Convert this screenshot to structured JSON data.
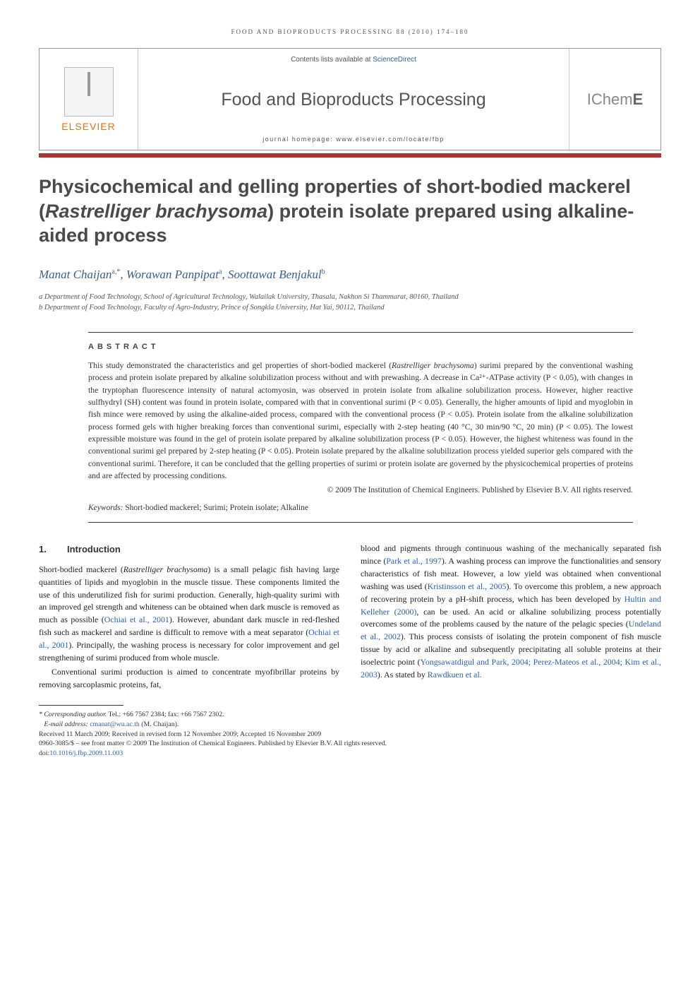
{
  "running_header": "FOOD AND BIOPRODUCTS PROCESSING 88 (2010) 174–180",
  "banner": {
    "elsevier": "ELSEVIER",
    "contents_prefix": "Contents lists available at ",
    "contents_link": "ScienceDirect",
    "journal_name": "Food and Bioproducts Processing",
    "homepage": "journal homepage: www.elsevier.com/locate/fbp",
    "publisher_mark_left": "IChem",
    "publisher_mark_bold": "E"
  },
  "title": {
    "pre": "Physicochemical and gelling properties of short-bodied mackerel (",
    "species": "Rastrelliger brachysoma",
    "post": ") protein isolate prepared using alkaline-aided process"
  },
  "authors_html": "Manat Chaijan<sup>a,*</sup>, Worawan Panpipat<sup>a</sup>, Soottawat Benjakul<sup>b</sup>",
  "affiliations": {
    "a": "a Department of Food Technology, School of Agricultural Technology, Walailak University, Thasala, Nakhon Si Thammarat, 80160, Thailand",
    "b": "b Department of Food Technology, Faculty of Agro-Industry, Prince of Songkla University, Hat Yai, 90112, Thailand"
  },
  "abstract": {
    "heading": "ABSTRACT",
    "body_pre": "This study demonstrated the characteristics and gel properties of short-bodied mackerel (",
    "body_species": "Rastrelliger brachysoma",
    "body_post": ") surimi prepared by the conventional washing process and protein isolate prepared by alkaline solubilization process without and with prewashing. A decrease in Ca²⁺-ATPase activity (P < 0.05), with changes in the tryptophan fluorescence intensity of natural actomyosin, was observed in protein isolate from alkaline solubilization process. However, higher reactive sulfhydryl (SH) content was found in protein isolate, compared with that in conventional surimi (P < 0.05). Generally, the higher amounts of lipid and myoglobin in fish mince were removed by using the alkaline-aided process, compared with the conventional process (P < 0.05). Protein isolate from the alkaline solubilization process formed gels with higher breaking forces than conventional surimi, especially with 2-step heating (40 °C, 30 min/90 °C, 20 min) (P < 0.05). The lowest expressible moisture was found in the gel of protein isolate prepared by alkaline solubilization process (P < 0.05). However, the highest whiteness was found in the conventional surimi gel prepared by 2-step heating (P < 0.05). Protein isolate prepared by the alkaline solubilization process yielded superior gels compared with the conventional surimi. Therefore, it can be concluded that the gelling properties of surimi or protein isolate are governed by the physicochemical properties of proteins and are affected by processing conditions.",
    "copyright": "© 2009 The Institution of Chemical Engineers. Published by Elsevier B.V. All rights reserved.",
    "keywords_label": "Keywords:",
    "keywords": " Short-bodied mackerel; Surimi; Protein isolate; Alkaline"
  },
  "section1": {
    "number": "1.",
    "title": "Introduction"
  },
  "col_left": {
    "p1_pre": "Short-bodied mackerel (",
    "p1_species": "Rastrelliger brachysoma",
    "p1_post": ") is a small pelagic fish having large quantities of lipids and myoglobin in the muscle tissue. These components limited the use of this underutilized fish for surimi production. Generally, high-quality surimi with an improved gel strength and whiteness can be obtained when dark muscle is removed as much as possible (",
    "p1_cite1": "Ochiai et al., 2001",
    "p1_mid": "). However, abundant dark muscle in red-fleshed fish such as mackerel and sardine is difficult to remove with a meat separator (",
    "p1_cite2": "Ochiai et al., 2001",
    "p1_end": "). Principally, the washing process is necessary for color improvement and gel strengthening of surimi produced from whole muscle.",
    "p2": "Conventional surimi production is aimed to concentrate myofibrillar proteins by removing sarcoplasmic proteins, fat,"
  },
  "col_right": {
    "p1_a": "blood and pigments through continuous washing of the mechanically separated fish mince (",
    "p1_cite1": "Park et al., 1997",
    "p1_b": "). A washing process can improve the functionalities and sensory characteristics of fish meat. However, a low yield was obtained when conventional washing was used (",
    "p1_cite2": "Kristinsson et al., 2005",
    "p1_c": "). To overcome this problem, a new approach of recovering protein by a pH-shift process, which has been developed by ",
    "p1_cite3": "Hultin and Kelleher (2000)",
    "p1_d": ", can be used. An acid or alkaline solubilizing process potentially overcomes some of the problems caused by the nature of the pelagic species (",
    "p1_cite4": "Undeland et al., 2002",
    "p1_e": "). This process consists of isolating the protein component of fish muscle tissue by acid or alkaline and subsequently precipitating all soluble proteins at their isoelectric point (",
    "p1_cite5": "Yongsawatdigul and Park, 2004; Perez-Mateos et al., 2004; Kim et al., 2003",
    "p1_f": "). As stated by ",
    "p1_cite6": "Rawdkuen et al."
  },
  "footnotes": {
    "corr_label": "* Corresponding author.",
    "corr_text": " Tel.: +66 7567 2384; fax: +66 7567 2302.",
    "email_label": "E-mail address: ",
    "email": "cmanat@wu.ac.th",
    "email_name": " (M. Chaijan).",
    "history": "Received 11 March 2009; Received in revised form 12 November 2009; Accepted 16 November 2009",
    "issn": "0960-3085/$ – see front matter © 2009 The Institution of Chemical Engineers. Published by Elsevier B.V. All rights reserved.",
    "doi_label": "doi:",
    "doi": "10.1016/j.fbp.2009.11.003"
  },
  "colors": {
    "red_rule": "#b5302f",
    "elsevier_orange": "#e8720c",
    "link_blue": "#2a5db0",
    "author_blue": "#3b5e8c"
  }
}
